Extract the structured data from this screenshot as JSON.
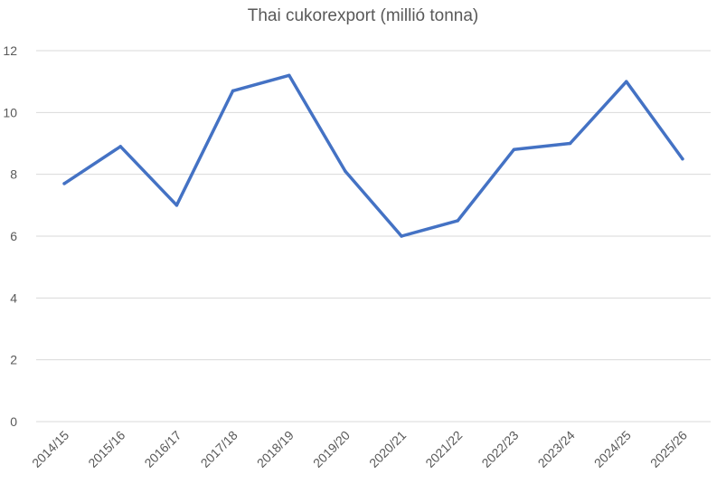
{
  "chart_data": {
    "type": "line",
    "title": "Thai cukorexport (millió tonna)",
    "xlabel": "",
    "ylabel": "",
    "categories": [
      "2014/15",
      "2015/16",
      "2016/17",
      "2017/18",
      "2018/19",
      "2019/20",
      "2020/21",
      "2021/22",
      "2022/23",
      "2023/24",
      "2024/25",
      "2025/26"
    ],
    "series": [
      {
        "values": [
          7.7,
          8.9,
          7.0,
          10.7,
          11.2,
          8.1,
          6.0,
          6.5,
          8.8,
          9.0,
          11.0,
          8.5
        ],
        "color": "#4472C4"
      }
    ],
    "ylim": [
      0,
      12
    ],
    "yticks": [
      0,
      2,
      4,
      6,
      8,
      10,
      12
    ],
    "grid": true,
    "legend": "none",
    "gridline_color": "#D9D9D9",
    "text_color": "#595959"
  }
}
